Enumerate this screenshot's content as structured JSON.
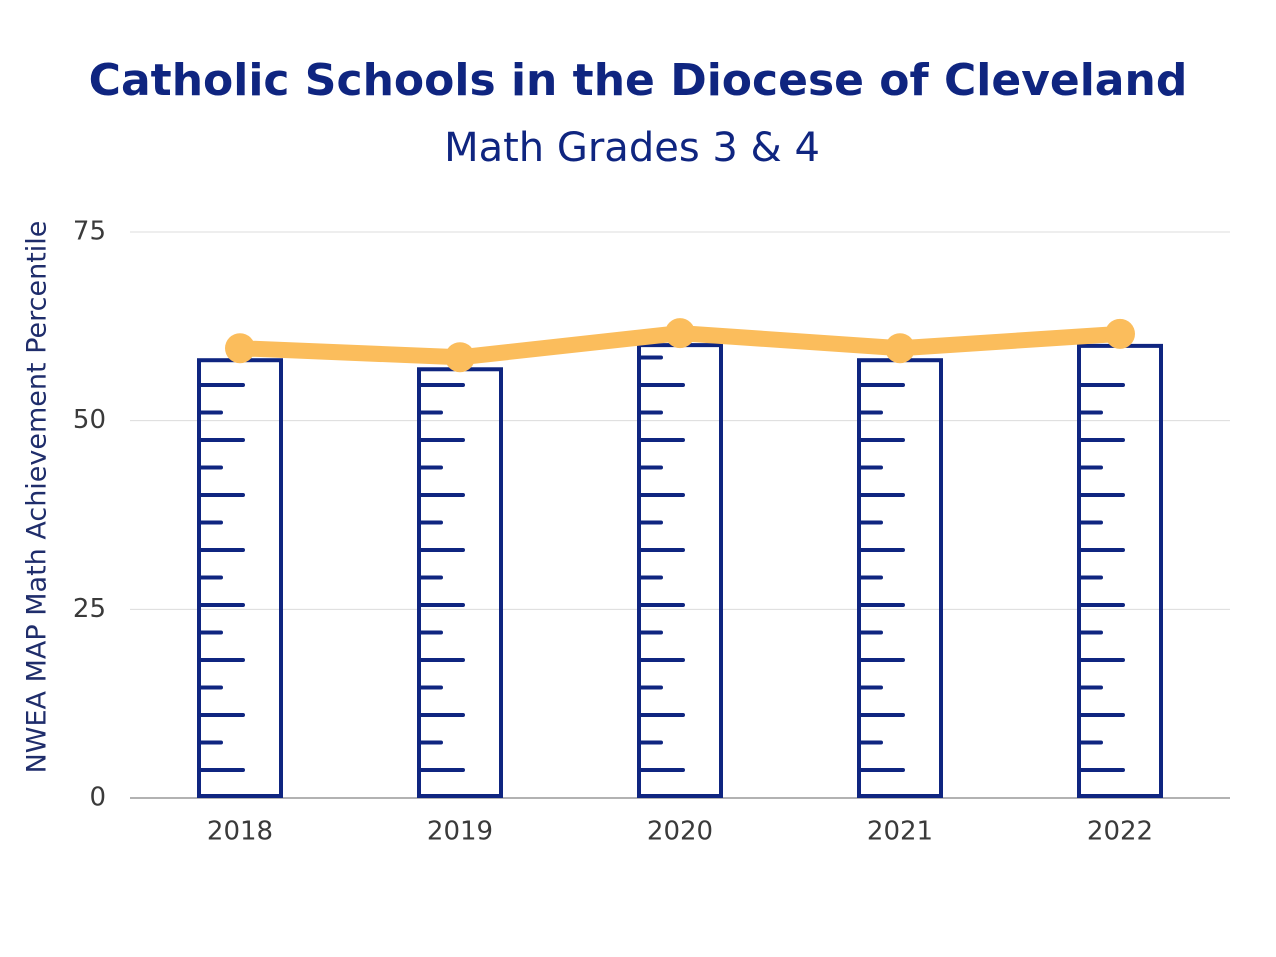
{
  "chart_data": {
    "type": "line",
    "title": "Catholic Schools in the Diocese of Cleveland",
    "subtitle": "Math Grades 3 & 4",
    "y_label": "NWEA MAP Math Achievement Percentile",
    "categories": [
      "2018",
      "2019",
      "2020",
      "2021",
      "2022"
    ],
    "values": [
      59.6,
      58.4,
      61.6,
      59.6,
      61.5
    ],
    "color": "#fbbd5c",
    "bar_color": "#0f2580",
    "ylim": [
      0,
      75
    ],
    "yticks": [
      0,
      25,
      50,
      75
    ],
    "grid": true
  }
}
